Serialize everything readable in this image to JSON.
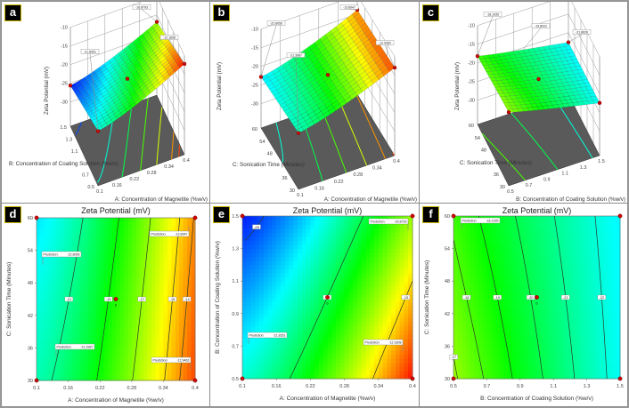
{
  "figure": {
    "panel_letters": [
      "a",
      "b",
      "c",
      "d",
      "e",
      "f"
    ]
  },
  "chart_data": [
    {
      "panel": "a",
      "type": "surface3d",
      "zlabel": "Zeta Potential (mV)",
      "xlabel": "A: Concentration of Magnetite (%w/v)",
      "ylabel": "B: Concentration of Coating Solution (%w/v)",
      "xlim": [
        0.1,
        0.4
      ],
      "ylim": [
        0.5,
        1.5
      ],
      "zlim": [
        -36.5,
        -10
      ],
      "x_ticks": [
        "0.1",
        "0.16",
        "0.22",
        "0.28",
        "0.34",
        "0.4"
      ],
      "y_ticks": [
        "0.5",
        "0.7",
        "1.1",
        "1.3",
        "1.5"
      ],
      "z_ticks": [
        "-10",
        "-15",
        "-20",
        "-25",
        "-30"
      ],
      "corner_values": {
        "x0y0": -21.8351,
        "x0y1": -25.6,
        "x1y0": -12.1808,
        "x1y1": -16.8793
      },
      "flags": [
        "-16.8793",
        "-21.8351",
        "-12.1808"
      ]
    },
    {
      "panel": "b",
      "type": "surface3d",
      "zlabel": "Zeta Potential (mV)",
      "xlabel": "A: Concentration of Magnetite (%w/v)",
      "ylabel": "C: Sonication Time (Minutes)",
      "xlim": [
        0.1,
        0.4
      ],
      "ylim": [
        30,
        60
      ],
      "zlim": [
        -36.5,
        -10
      ],
      "x_ticks": [
        "0.1",
        "0.16",
        "0.22",
        "0.28",
        "0.34",
        "0.4"
      ],
      "y_ticks": [
        "30",
        "36",
        "48",
        "54",
        "60"
      ],
      "z_ticks": [
        "-10",
        "-15",
        "-20",
        "-25",
        "-30"
      ],
      "corner_values": {
        "x0y0": -21.3987,
        "x0y1": -22.8056,
        "x1y0": -12.9462,
        "x1y1": -13.8947
      },
      "flags": [
        "-13.8947",
        "-22.8056",
        "-21.3987",
        "-12.9462"
      ]
    },
    {
      "panel": "c",
      "type": "surface3d",
      "zlabel": "Zeta Potential (mV)",
      "xlabel": "B: Concentration of Coating Solution (%w/v)",
      "ylabel": "C: Sonication Time (Minutes)",
      "xlim": [
        0.5,
        1.5
      ],
      "ylim": [
        30,
        60
      ],
      "zlim": [
        -36.5,
        -10
      ],
      "x_ticks": [
        "0.5",
        "0.7",
        "0.9",
        "1.1",
        "1.3",
        "1.5"
      ],
      "y_ticks": [
        "30",
        "36",
        "48",
        "54",
        "60"
      ],
      "z_ticks": [
        "-10",
        "-15",
        "-20",
        "-25",
        "-30"
      ],
      "corner_values": {
        "x0y0": -16.8,
        "x0y1": -18.1935,
        "x1y0": -22.4,
        "x1y1": -22.6
      },
      "flags": [
        "-18.1935",
        "-19.8022",
        "-21.8628"
      ]
    },
    {
      "panel": "d",
      "type": "heatmap",
      "title": "Zeta Potential (mV)",
      "xlabel": "A: Concentration of Magnetite (%w/v)",
      "ylabel": "C: Sonication Time (Minutes)",
      "xlim": [
        0.1,
        0.4
      ],
      "ylim": [
        30,
        60
      ],
      "x_ticks": [
        "0.1",
        "0.16",
        "0.22",
        "0.28",
        "0.34",
        "0.4"
      ],
      "y_ticks": [
        "30",
        "36",
        "42",
        "48",
        "54",
        "60"
      ],
      "corner_values": {
        "x0y0": -21.3987,
        "x0y1": -22.8056,
        "x1y0": -12.9462,
        "x1y1": -13.8947
      },
      "contour_levels": [
        -21,
        -19,
        -17,
        -15,
        -14
      ],
      "prediction_label": "Prediction:",
      "predictions": [
        "-22.8056",
        "-21.3987",
        "-13.8947",
        "-12.9462"
      ],
      "center_point_label": "6",
      "colormap": [
        "#0000ff",
        "#00ffff",
        "#00ff00",
        "#ffff00",
        "#ff0000"
      ]
    },
    {
      "panel": "e",
      "type": "heatmap",
      "title": "Zeta Potential (mV)",
      "xlabel": "A: Concentration of Magnetite (%w/v)",
      "ylabel": "B: Concentration of Coating Solution (%w/v)",
      "xlim": [
        0.1,
        0.4
      ],
      "ylim": [
        0.5,
        1.5
      ],
      "x_ticks": [
        "0.1",
        "0.16",
        "0.22",
        "0.28",
        "0.34",
        "0.4"
      ],
      "y_ticks": [
        "0.5",
        "0.7",
        "0.9",
        "1.1",
        "1.3",
        "1.5"
      ],
      "corner_values": {
        "x0y0": -21.8351,
        "x0y1": -25.6,
        "x1y0": -12.1808,
        "x1y1": -16.8793
      },
      "contour_levels": [
        -25,
        -20,
        -15
      ],
      "prediction_label": "Prediction:",
      "predictions": [
        "-21.8351",
        "-16.8793",
        "-12.1808"
      ],
      "center_point_label": "6",
      "colormap": [
        "#0000ff",
        "#00ffff",
        "#00ff00",
        "#ffff00",
        "#ff0000"
      ]
    },
    {
      "panel": "f",
      "type": "heatmap",
      "title": "Zeta Potential (mV)",
      "xlabel": "B: Concentration of Coating Solution (%w/v)",
      "ylabel": "C: Sonication Time (Minutes)",
      "xlim": [
        0.5,
        1.5
      ],
      "ylim": [
        30,
        60
      ],
      "x_ticks": [
        "0.5",
        "0.7",
        "0.9",
        "1.1",
        "1.3",
        "1.5"
      ],
      "y_ticks": [
        "30",
        "36",
        "42",
        "48",
        "54",
        "60"
      ],
      "corner_values": {
        "x0y0": -16.8,
        "x0y1": -18.1935,
        "x1y0": -22.4,
        "x1y1": -22.6
      },
      "contour_levels": [
        -17,
        -18,
        -19,
        -20,
        -21,
        -22
      ],
      "prediction_label": "Prediction:",
      "predictions": [
        "-18.1935"
      ],
      "center_point_label": "6",
      "colormap": [
        "#0000ff",
        "#00ffff",
        "#00ff00",
        "#ffff00",
        "#ff0000"
      ]
    }
  ]
}
